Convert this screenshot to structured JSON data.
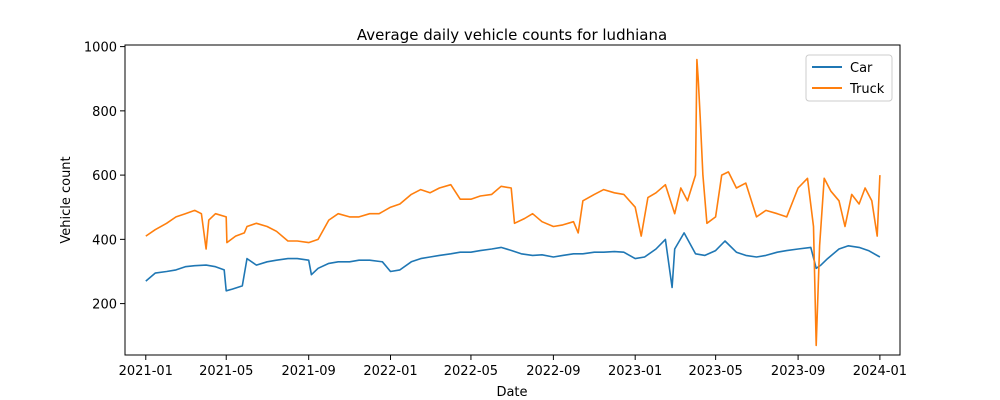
{
  "chart_data": {
    "type": "line",
    "title": "Average daily vehicle counts for ludhiana",
    "xlabel": "Date",
    "ylabel": "Vehicle count",
    "xlim": [
      "2020-12-01",
      "2024-01-31"
    ],
    "ylim": [
      40,
      1005
    ],
    "x_ticks": [
      "2021-01",
      "2021-05",
      "2021-09",
      "2022-01",
      "2022-05",
      "2022-09",
      "2023-01",
      "2023-05",
      "2023-09",
      "2024-01"
    ],
    "y_ticks": [
      200,
      400,
      600,
      800,
      1000
    ],
    "grid": false,
    "legend": "upper-right",
    "series": [
      {
        "name": "Car",
        "color": "#1f77b4",
        "points": [
          [
            "2021-01-01",
            270
          ],
          [
            "2021-01-15",
            295
          ],
          [
            "2021-02-01",
            300
          ],
          [
            "2021-02-15",
            305
          ],
          [
            "2021-03-01",
            315
          ],
          [
            "2021-03-15",
            318
          ],
          [
            "2021-04-01",
            320
          ],
          [
            "2021-04-15",
            315
          ],
          [
            "2021-04-28",
            305
          ],
          [
            "2021-05-01",
            240
          ],
          [
            "2021-05-10",
            245
          ],
          [
            "2021-05-25",
            255
          ],
          [
            "2021-06-01",
            340
          ],
          [
            "2021-06-15",
            320
          ],
          [
            "2021-07-01",
            330
          ],
          [
            "2021-07-15",
            335
          ],
          [
            "2021-08-01",
            340
          ],
          [
            "2021-08-15",
            340
          ],
          [
            "2021-09-01",
            335
          ],
          [
            "2021-09-05",
            290
          ],
          [
            "2021-09-15",
            310
          ],
          [
            "2021-10-01",
            325
          ],
          [
            "2021-10-15",
            330
          ],
          [
            "2021-11-01",
            330
          ],
          [
            "2021-11-15",
            335
          ],
          [
            "2021-12-01",
            335
          ],
          [
            "2021-12-20",
            330
          ],
          [
            "2022-01-01",
            300
          ],
          [
            "2022-01-15",
            305
          ],
          [
            "2022-02-01",
            330
          ],
          [
            "2022-02-15",
            340
          ],
          [
            "2022-03-01",
            345
          ],
          [
            "2022-03-15",
            350
          ],
          [
            "2022-04-01",
            355
          ],
          [
            "2022-04-15",
            360
          ],
          [
            "2022-05-01",
            360
          ],
          [
            "2022-05-15",
            365
          ],
          [
            "2022-06-01",
            370
          ],
          [
            "2022-06-15",
            375
          ],
          [
            "2022-07-01",
            365
          ],
          [
            "2022-07-15",
            355
          ],
          [
            "2022-08-01",
            350
          ],
          [
            "2022-08-15",
            352
          ],
          [
            "2022-09-01",
            345
          ],
          [
            "2022-09-15",
            350
          ],
          [
            "2022-10-01",
            355
          ],
          [
            "2022-10-15",
            355
          ],
          [
            "2022-11-01",
            360
          ],
          [
            "2022-11-15",
            360
          ],
          [
            "2022-12-01",
            362
          ],
          [
            "2022-12-15",
            360
          ],
          [
            "2023-01-01",
            340
          ],
          [
            "2023-01-15",
            345
          ],
          [
            "2023-02-01",
            370
          ],
          [
            "2023-02-15",
            400
          ],
          [
            "2023-02-25",
            250
          ],
          [
            "2023-03-01",
            370
          ],
          [
            "2023-03-15",
            420
          ],
          [
            "2023-04-01",
            355
          ],
          [
            "2023-04-15",
            350
          ],
          [
            "2023-05-01",
            365
          ],
          [
            "2023-05-15",
            395
          ],
          [
            "2023-06-01",
            360
          ],
          [
            "2023-06-15",
            350
          ],
          [
            "2023-07-01",
            345
          ],
          [
            "2023-07-15",
            350
          ],
          [
            "2023-08-01",
            360
          ],
          [
            "2023-08-15",
            365
          ],
          [
            "2023-09-01",
            370
          ],
          [
            "2023-09-20",
            375
          ],
          [
            "2023-09-28",
            310
          ],
          [
            "2023-10-05",
            320
          ],
          [
            "2023-10-15",
            340
          ],
          [
            "2023-11-01",
            370
          ],
          [
            "2023-11-15",
            380
          ],
          [
            "2023-12-01",
            375
          ],
          [
            "2023-12-15",
            365
          ],
          [
            "2024-01-01",
            345
          ]
        ]
      },
      {
        "name": "Truck",
        "color": "#ff7f0e",
        "points": [
          [
            "2021-01-01",
            410
          ],
          [
            "2021-01-15",
            430
          ],
          [
            "2021-02-01",
            450
          ],
          [
            "2021-02-15",
            470
          ],
          [
            "2021-03-01",
            480
          ],
          [
            "2021-03-15",
            490
          ],
          [
            "2021-03-25",
            480
          ],
          [
            "2021-04-01",
            370
          ],
          [
            "2021-04-05",
            460
          ],
          [
            "2021-04-15",
            480
          ],
          [
            "2021-05-01",
            470
          ],
          [
            "2021-05-02",
            390
          ],
          [
            "2021-05-15",
            410
          ],
          [
            "2021-05-28",
            420
          ],
          [
            "2021-06-01",
            440
          ],
          [
            "2021-06-15",
            450
          ],
          [
            "2021-07-01",
            440
          ],
          [
            "2021-07-15",
            425
          ],
          [
            "2021-08-01",
            395
          ],
          [
            "2021-08-15",
            395
          ],
          [
            "2021-09-01",
            390
          ],
          [
            "2021-09-15",
            400
          ],
          [
            "2021-10-01",
            460
          ],
          [
            "2021-10-15",
            480
          ],
          [
            "2021-11-01",
            470
          ],
          [
            "2021-11-15",
            470
          ],
          [
            "2021-12-01",
            480
          ],
          [
            "2021-12-15",
            480
          ],
          [
            "2022-01-01",
            500
          ],
          [
            "2022-01-15",
            510
          ],
          [
            "2022-02-01",
            540
          ],
          [
            "2022-02-15",
            555
          ],
          [
            "2022-03-01",
            545
          ],
          [
            "2022-03-15",
            560
          ],
          [
            "2022-04-01",
            570
          ],
          [
            "2022-04-15",
            525
          ],
          [
            "2022-05-01",
            525
          ],
          [
            "2022-05-15",
            535
          ],
          [
            "2022-06-01",
            540
          ],
          [
            "2022-06-15",
            565
          ],
          [
            "2022-06-30",
            560
          ],
          [
            "2022-07-05",
            450
          ],
          [
            "2022-07-20",
            465
          ],
          [
            "2022-08-01",
            480
          ],
          [
            "2022-08-15",
            455
          ],
          [
            "2022-09-01",
            440
          ],
          [
            "2022-09-15",
            445
          ],
          [
            "2022-10-01",
            455
          ],
          [
            "2022-10-08",
            420
          ],
          [
            "2022-10-15",
            520
          ],
          [
            "2022-11-01",
            540
          ],
          [
            "2022-11-15",
            555
          ],
          [
            "2022-12-01",
            545
          ],
          [
            "2022-12-15",
            540
          ],
          [
            "2023-01-01",
            500
          ],
          [
            "2023-01-10",
            410
          ],
          [
            "2023-01-20",
            530
          ],
          [
            "2023-02-01",
            545
          ],
          [
            "2023-02-15",
            570
          ],
          [
            "2023-03-01",
            480
          ],
          [
            "2023-03-10",
            560
          ],
          [
            "2023-03-20",
            520
          ],
          [
            "2023-04-01",
            600
          ],
          [
            "2023-04-03",
            960
          ],
          [
            "2023-04-05",
            900
          ],
          [
            "2023-04-08",
            780
          ],
          [
            "2023-04-12",
            600
          ],
          [
            "2023-04-18",
            450
          ],
          [
            "2023-05-01",
            470
          ],
          [
            "2023-05-10",
            600
          ],
          [
            "2023-05-20",
            610
          ],
          [
            "2023-06-01",
            560
          ],
          [
            "2023-06-15",
            575
          ],
          [
            "2023-07-01",
            470
          ],
          [
            "2023-07-15",
            490
          ],
          [
            "2023-08-01",
            480
          ],
          [
            "2023-08-15",
            470
          ],
          [
            "2023-09-01",
            560
          ],
          [
            "2023-09-15",
            590
          ],
          [
            "2023-09-24",
            440
          ],
          [
            "2023-09-28",
            70
          ],
          [
            "2023-10-03",
            380
          ],
          [
            "2023-10-10",
            590
          ],
          [
            "2023-10-20",
            550
          ],
          [
            "2023-11-01",
            520
          ],
          [
            "2023-11-10",
            440
          ],
          [
            "2023-11-20",
            540
          ],
          [
            "2023-12-01",
            510
          ],
          [
            "2023-12-10",
            560
          ],
          [
            "2023-12-20",
            520
          ],
          [
            "2023-12-28",
            410
          ],
          [
            "2024-01-01",
            600
          ]
        ]
      }
    ]
  }
}
